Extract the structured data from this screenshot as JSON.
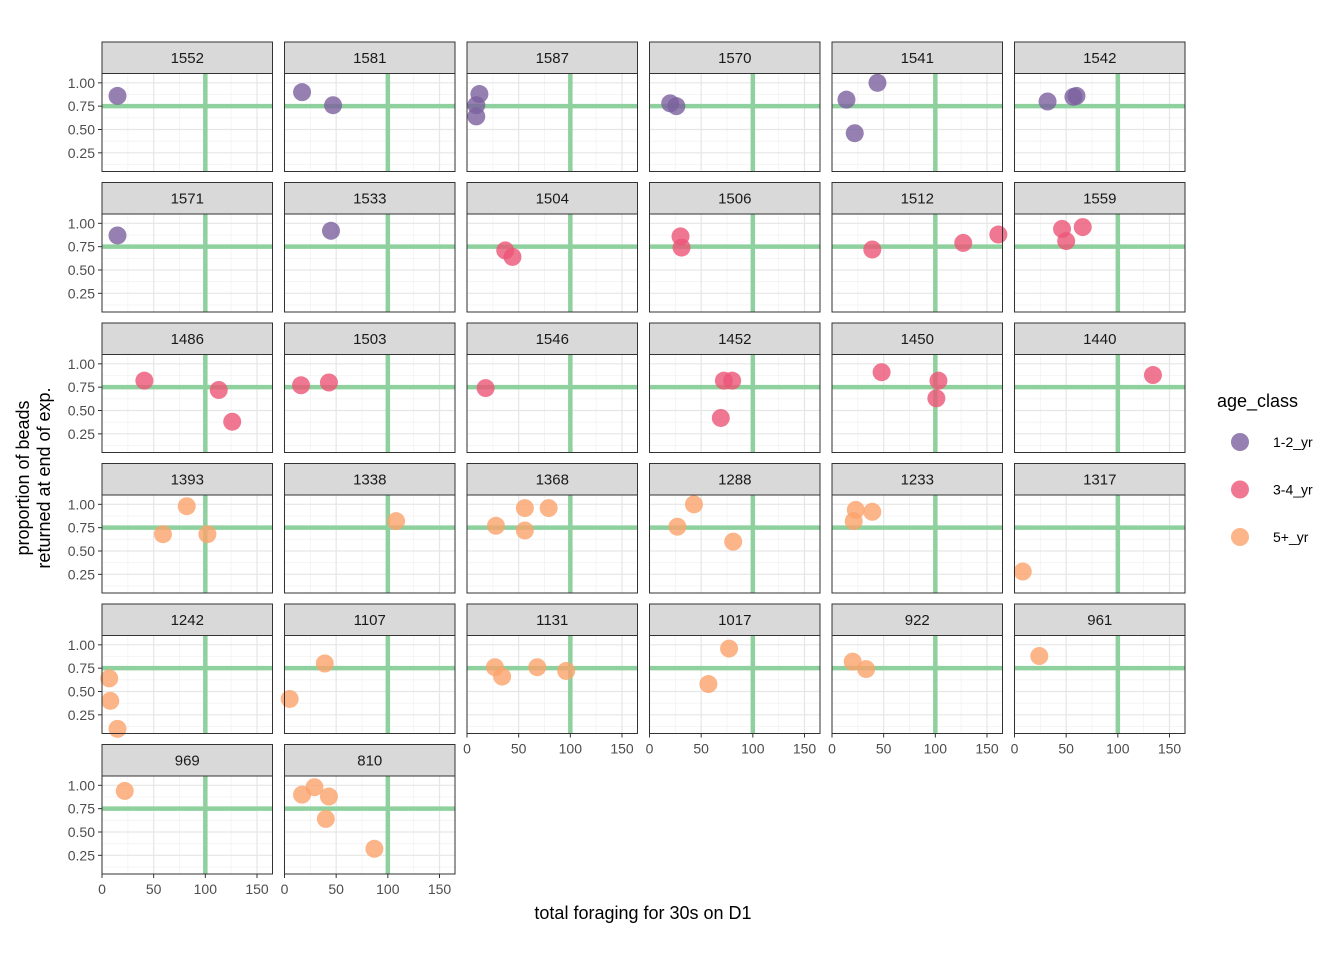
{
  "chart_data": {
    "type": "scatter",
    "layout": "faceted",
    "xlabel": "total foraging for 30s on D1",
    "ylabel_lines": [
      "proportion of beads",
      "returned at end of exp."
    ],
    "xlim": [
      0,
      165
    ],
    "ylim": [
      0.05,
      1.1
    ],
    "x_ticks": [
      0,
      50,
      100,
      150
    ],
    "y_ticks": [
      0.25,
      0.5,
      0.75,
      1.0
    ],
    "y_tick_labels": [
      "0.25",
      "0.50",
      "0.75",
      "1.00"
    ],
    "reference_lines": {
      "x": 100,
      "y": 0.75,
      "color": "#8fd19e"
    },
    "grid": true,
    "legend": {
      "title": "age_class",
      "placement": "right",
      "items": [
        {
          "label": "1-2_yr",
          "color": "#7b609d"
        },
        {
          "label": "3-4_yr",
          "color": "#ec5577"
        },
        {
          "label": "5+_yr",
          "color": "#fba26b"
        }
      ]
    },
    "panels": [
      {
        "id": "1552",
        "points": [
          [
            15,
            0.86,
            0
          ]
        ]
      },
      {
        "id": "1581",
        "points": [
          [
            17,
            0.9,
            0
          ],
          [
            47,
            0.76,
            0
          ]
        ]
      },
      {
        "id": "1587",
        "points": [
          [
            12,
            0.88,
            0
          ],
          [
            9,
            0.76,
            0
          ],
          [
            9,
            0.64,
            0
          ]
        ]
      },
      {
        "id": "1570",
        "points": [
          [
            20,
            0.78,
            0
          ],
          [
            26,
            0.75,
            0
          ]
        ]
      },
      {
        "id": "1541",
        "points": [
          [
            44,
            1.0,
            0
          ],
          [
            14,
            0.82,
            0
          ],
          [
            22,
            0.46,
            0
          ]
        ]
      },
      {
        "id": "1542",
        "points": [
          [
            32,
            0.8,
            0
          ],
          [
            57,
            0.85,
            0
          ],
          [
            60,
            0.86,
            0
          ]
        ]
      },
      {
        "id": "1571",
        "points": [
          [
            15,
            0.87,
            0
          ]
        ]
      },
      {
        "id": "1533",
        "points": [
          [
            45,
            0.92,
            0
          ]
        ]
      },
      {
        "id": "1504",
        "points": [
          [
            37,
            0.71,
            1
          ],
          [
            44,
            0.64,
            1
          ]
        ]
      },
      {
        "id": "1506",
        "points": [
          [
            30,
            0.86,
            1
          ],
          [
            31,
            0.74,
            1
          ]
        ]
      },
      {
        "id": "1512",
        "points": [
          [
            39,
            0.72,
            1
          ],
          [
            127,
            0.79,
            1
          ],
          [
            161,
            0.88,
            1
          ]
        ]
      },
      {
        "id": "1559",
        "points": [
          [
            46,
            0.94,
            1
          ],
          [
            66,
            0.96,
            1
          ],
          [
            50,
            0.81,
            1
          ]
        ]
      },
      {
        "id": "1486",
        "points": [
          [
            41,
            0.82,
            1
          ],
          [
            113,
            0.72,
            1
          ],
          [
            126,
            0.38,
            1
          ]
        ]
      },
      {
        "id": "1503",
        "points": [
          [
            16,
            0.77,
            1
          ],
          [
            43,
            0.8,
            1
          ]
        ]
      },
      {
        "id": "1546",
        "points": [
          [
            18,
            0.74,
            1
          ]
        ]
      },
      {
        "id": "1452",
        "points": [
          [
            72,
            0.82,
            1
          ],
          [
            80,
            0.82,
            1
          ],
          [
            69,
            0.42,
            1
          ]
        ]
      },
      {
        "id": "1450",
        "points": [
          [
            48,
            0.91,
            1
          ],
          [
            103,
            0.82,
            1
          ],
          [
            101,
            0.63,
            1
          ]
        ]
      },
      {
        "id": "1440",
        "points": [
          [
            134,
            0.88,
            1
          ]
        ]
      },
      {
        "id": "1393",
        "points": [
          [
            82,
            0.98,
            2
          ],
          [
            59,
            0.68,
            2
          ],
          [
            102,
            0.68,
            2
          ]
        ]
      },
      {
        "id": "1338",
        "points": [
          [
            108,
            0.82,
            2
          ]
        ]
      },
      {
        "id": "1368",
        "points": [
          [
            56,
            0.96,
            2
          ],
          [
            79,
            0.96,
            2
          ],
          [
            28,
            0.77,
            2
          ],
          [
            56,
            0.72,
            2
          ]
        ]
      },
      {
        "id": "1288",
        "points": [
          [
            43,
            1.0,
            2
          ],
          [
            27,
            0.76,
            2
          ],
          [
            81,
            0.6,
            2
          ]
        ]
      },
      {
        "id": "1233",
        "points": [
          [
            23,
            0.94,
            2
          ],
          [
            39,
            0.92,
            2
          ],
          [
            21,
            0.82,
            2
          ]
        ]
      },
      {
        "id": "1317",
        "points": [
          [
            8,
            0.28,
            2
          ]
        ]
      },
      {
        "id": "1242",
        "points": [
          [
            7,
            0.64,
            2
          ],
          [
            8,
            0.4,
            2
          ],
          [
            15,
            0.1,
            2
          ]
        ]
      },
      {
        "id": "1107",
        "points": [
          [
            39,
            0.8,
            2
          ],
          [
            5,
            0.42,
            2
          ]
        ]
      },
      {
        "id": "1131",
        "points": [
          [
            27,
            0.76,
            2
          ],
          [
            34,
            0.66,
            2
          ],
          [
            68,
            0.76,
            2
          ],
          [
            96,
            0.72,
            2
          ]
        ]
      },
      {
        "id": "1017",
        "points": [
          [
            77,
            0.96,
            2
          ],
          [
            57,
            0.58,
            2
          ]
        ]
      },
      {
        "id": "922",
        "points": [
          [
            20,
            0.82,
            2
          ],
          [
            33,
            0.74,
            2
          ]
        ]
      },
      {
        "id": "961",
        "points": [
          [
            24,
            0.88,
            2
          ]
        ]
      },
      {
        "id": "969",
        "points": [
          [
            22,
            0.94,
            2
          ]
        ]
      },
      {
        "id": "810",
        "points": [
          [
            29,
            0.98,
            2
          ],
          [
            17,
            0.9,
            2
          ],
          [
            43,
            0.88,
            2
          ],
          [
            40,
            0.64,
            2
          ],
          [
            87,
            0.32,
            2
          ]
        ]
      }
    ]
  }
}
